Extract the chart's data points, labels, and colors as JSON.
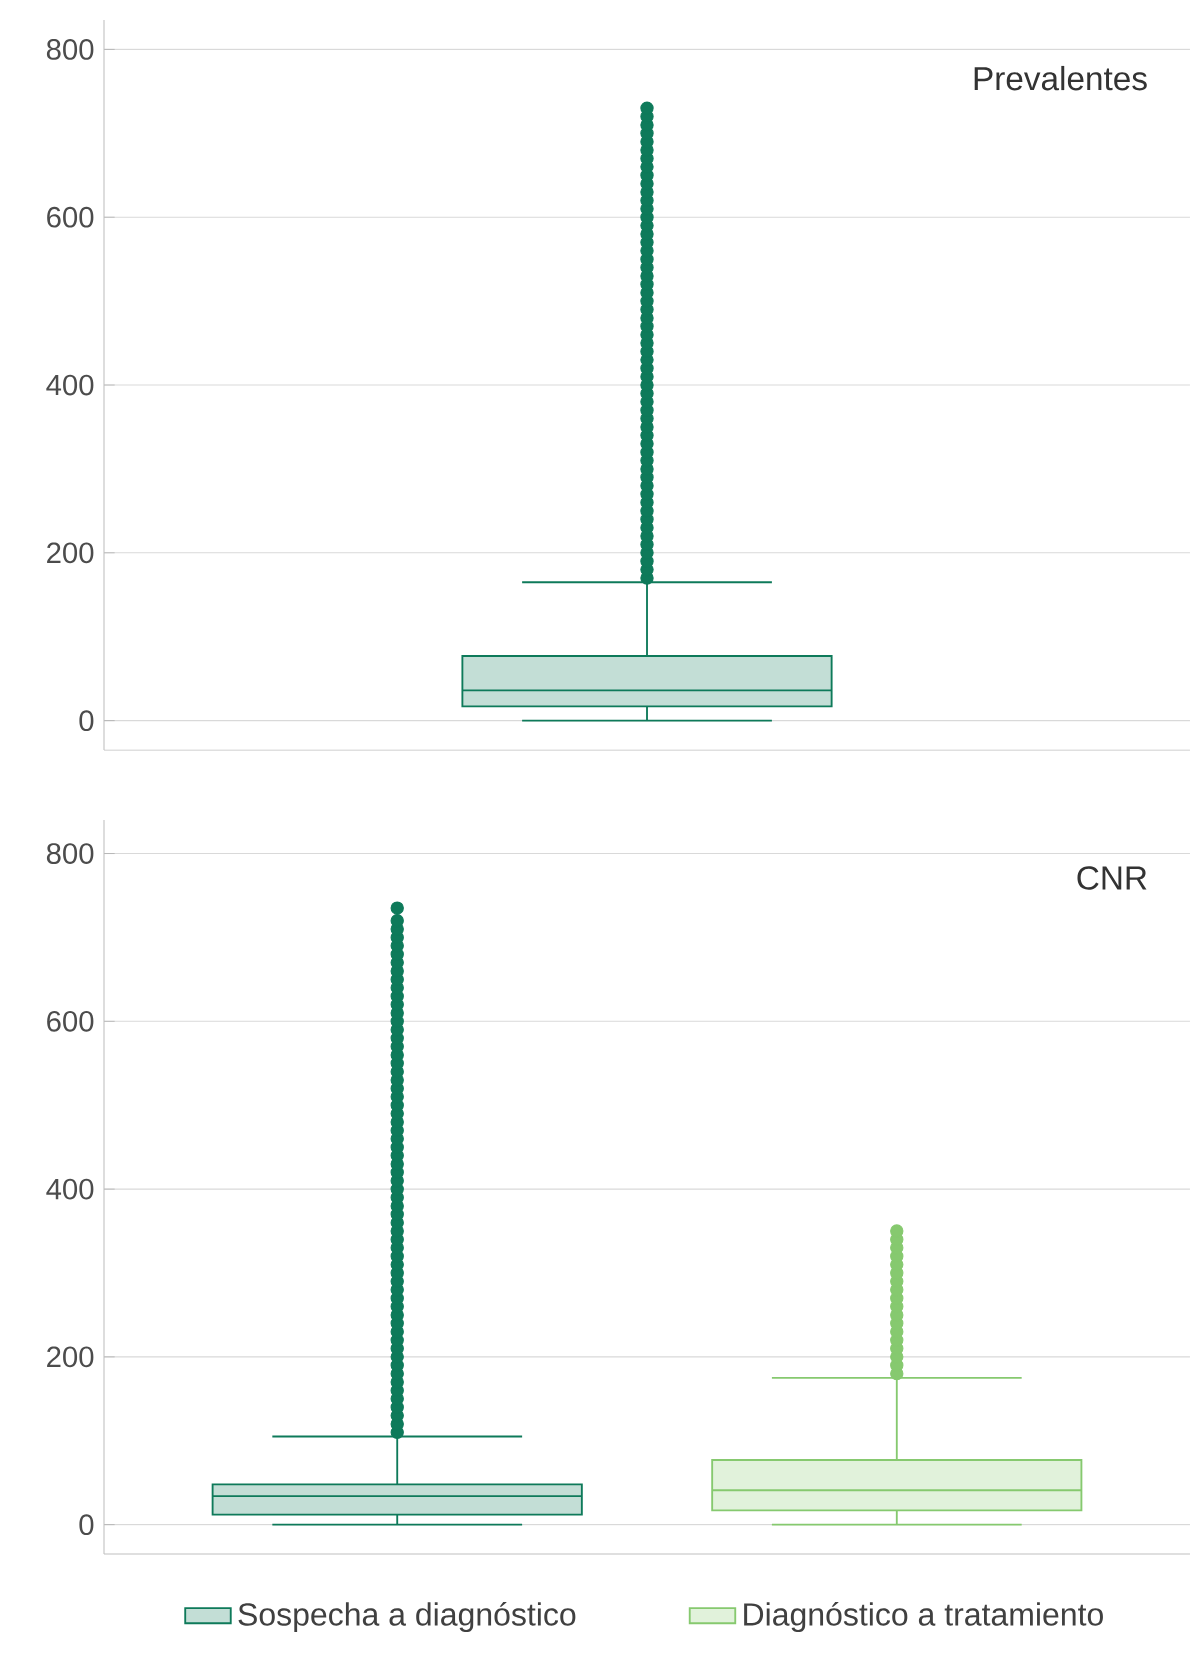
{
  "chart_data": [
    {
      "type": "box",
      "title": "Prevalentes",
      "categories": [
        null
      ],
      "ylim": [
        -35,
        835
      ],
      "yticks": [
        0,
        200,
        400,
        600,
        800
      ],
      "grid": "y",
      "tick_labels": "y",
      "series": [
        {
          "color": "#0e7a5a",
          "boxes": [
            {
              "low": 0,
              "q1": 17,
              "median": 36,
              "q3": 77,
              "high": 165,
              "outliers": [
                170,
                180,
                190,
                200,
                210,
                220,
                230,
                240,
                250,
                260,
                270,
                280,
                290,
                300,
                310,
                320,
                330,
                340,
                350,
                360,
                370,
                380,
                390,
                400,
                410,
                420,
                430,
                440,
                450,
                460,
                470,
                480,
                490,
                500,
                510,
                520,
                530,
                540,
                550,
                560,
                570,
                580,
                590,
                600,
                610,
                620,
                630,
                640,
                650,
                660,
                670,
                680,
                690,
                700,
                710,
                720,
                730
              ]
            }
          ]
        }
      ]
    },
    {
      "type": "box",
      "title": "CNR",
      "categories": [
        null
      ],
      "ylim": [
        -35,
        840
      ],
      "yticks": [
        0,
        200,
        400,
        600,
        800
      ],
      "grid": "y",
      "tick_labels": "y",
      "legend": "bottom",
      "series": [
        {
          "name": "Sospecha a diagnóstico",
          "color": "#0e7a5a",
          "boxes": [
            {
              "low": 0,
              "q1": 12,
              "median": 34,
              "q3": 48,
              "high": 105,
              "outliers": [
                110,
                120,
                130,
                140,
                150,
                160,
                170,
                180,
                190,
                200,
                210,
                220,
                230,
                240,
                250,
                260,
                270,
                280,
                290,
                300,
                310,
                320,
                330,
                340,
                350,
                360,
                370,
                380,
                390,
                400,
                410,
                420,
                430,
                440,
                450,
                460,
                470,
                480,
                490,
                500,
                510,
                520,
                530,
                540,
                550,
                560,
                570,
                580,
                590,
                600,
                610,
                620,
                630,
                640,
                650,
                660,
                670,
                680,
                690,
                700,
                710,
                720,
                735
              ]
            }
          ]
        },
        {
          "name": "Diagnóstico a tratamiento",
          "color": "#86c96f",
          "boxes": [
            {
              "low": 0,
              "q1": 17,
              "median": 41,
              "q3": 77,
              "high": 175,
              "outliers": [
                180,
                190,
                200,
                210,
                220,
                230,
                240,
                250,
                260,
                270,
                280,
                290,
                300,
                310,
                320,
                330,
                340,
                350
              ]
            }
          ]
        }
      ]
    }
  ]
}
